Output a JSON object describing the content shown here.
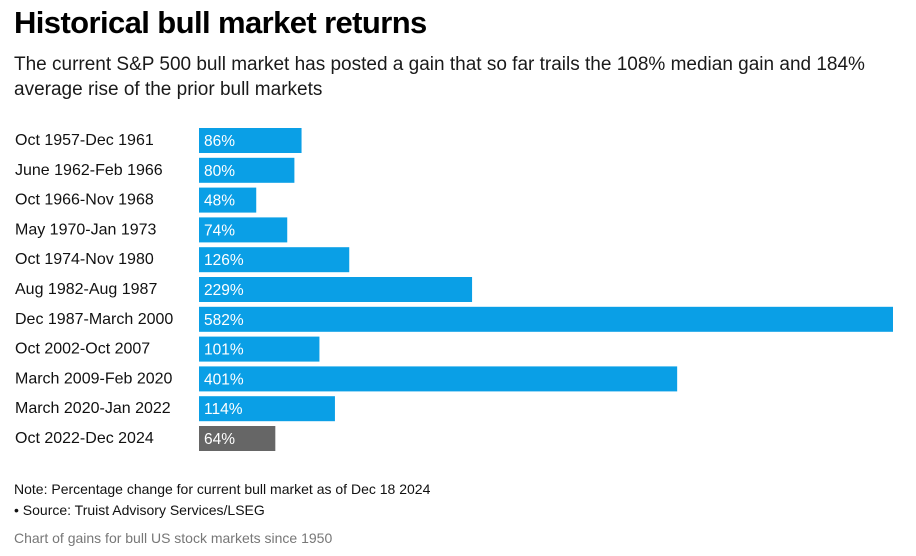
{
  "title": "Historical bull market returns",
  "subtitle": "The current S&P 500 bull market has posted a gain that so far trails the 108% median gain and 184% average rise of the prior bull markets",
  "note": "Note: Percentage change for current bull market as of Dec 18 2024",
  "source": "• Source: Truist Advisory Services/LSEG",
  "caption": "Chart of gains for bull US stock markets since 1950",
  "colors": {
    "prior": "#0a9fe6",
    "current": "#666666"
  },
  "chart_data": {
    "type": "bar",
    "orientation": "horizontal",
    "title": "Historical bull market returns",
    "categories": [
      "Oct 1957-Dec 1961",
      "June 1962-Feb 1966",
      "Oct 1966-Nov 1968",
      "May 1970-Jan 1973",
      "Oct 1974-Nov 1980",
      "Aug 1982-Aug 1987",
      "Dec 1987-March 2000",
      "Oct 2002-Oct 2007",
      "March 2009-Feb 2020",
      "March 2020-Jan 2022",
      "Oct 2022-Dec 2024"
    ],
    "values": [
      86,
      80,
      48,
      74,
      126,
      229,
      582,
      101,
      401,
      114,
      64
    ],
    "value_labels": [
      "86%",
      "80%",
      "48%",
      "74%",
      "126%",
      "229%",
      "582%",
      "101%",
      "401%",
      "114%",
      "64%"
    ],
    "xlim": [
      0,
      582
    ],
    "grid": false,
    "highlight_index": 10
  }
}
